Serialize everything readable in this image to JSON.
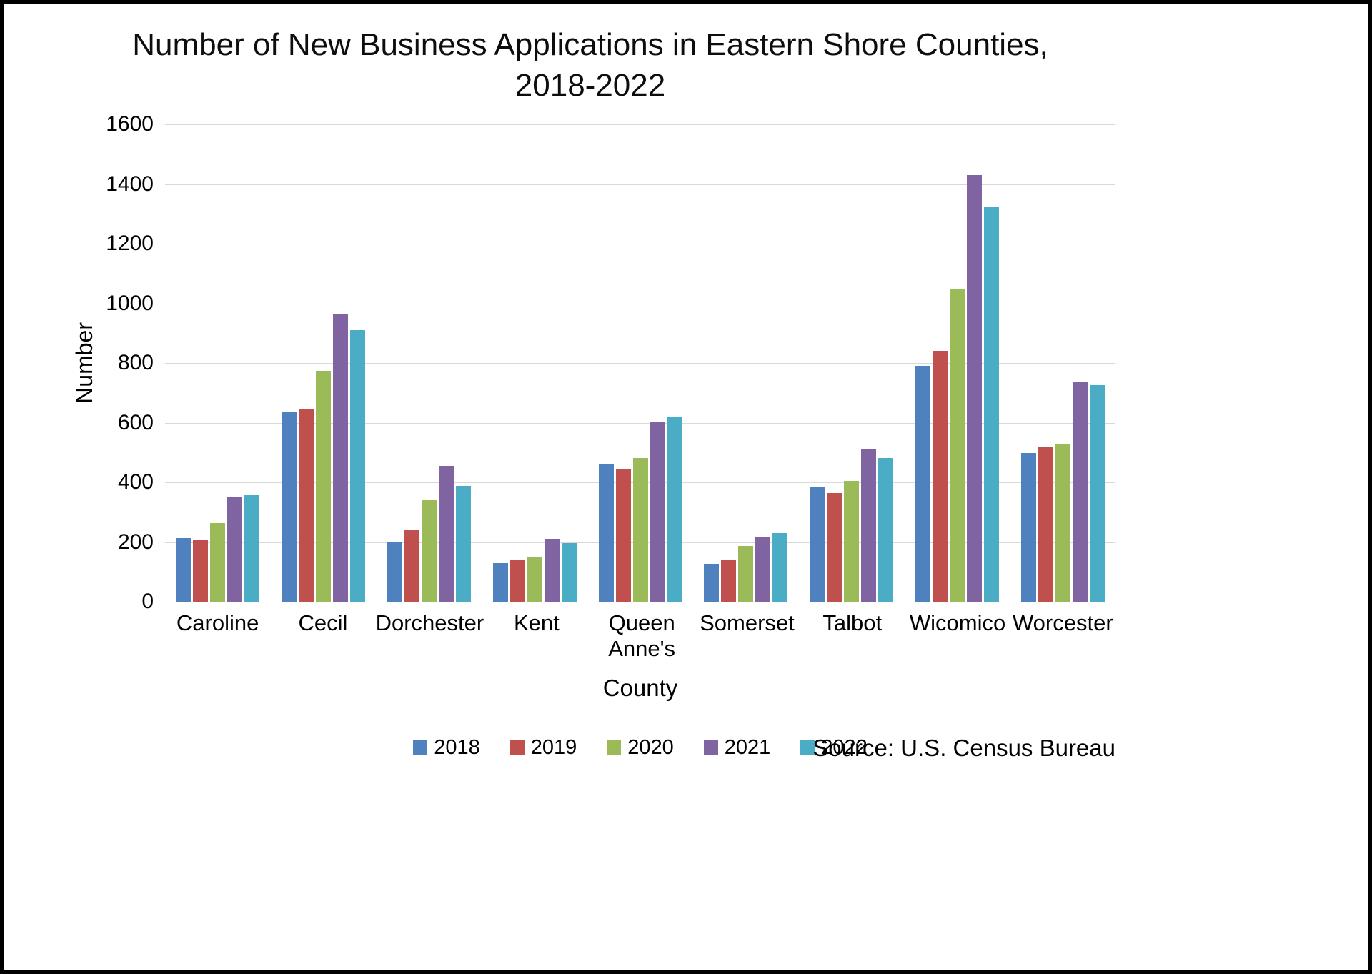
{
  "chart_data": {
    "type": "bar",
    "title_line1": "Number of New Business Applications in Eastern Shore Counties,",
    "title_line2": "2018-2022",
    "xlabel": "County",
    "ylabel": "Number",
    "ylim": [
      0,
      1600
    ],
    "yticks": [
      0,
      200,
      400,
      600,
      800,
      1000,
      1200,
      1400,
      1600
    ],
    "grid": true,
    "legend_position": "bottom",
    "source": "Source: U.S. Census Bureau",
    "categories": [
      "Caroline",
      "Cecil",
      "Dorchester",
      "Kent",
      "Queen Anne's",
      "Somerset",
      "Talbot",
      "Wicomico",
      "Worcester"
    ],
    "series": [
      {
        "name": "2018",
        "color": "#4e81bd",
        "values": [
          215,
          635,
          202,
          130,
          462,
          128,
          383,
          791,
          500
        ]
      },
      {
        "name": "2019",
        "color": "#c0504d",
        "values": [
          210,
          645,
          240,
          143,
          447,
          140,
          366,
          841,
          518
        ]
      },
      {
        "name": "2020",
        "color": "#9bbb59",
        "values": [
          265,
          775,
          340,
          150,
          482,
          188,
          405,
          1048,
          530
        ]
      },
      {
        "name": "2021",
        "color": "#8064a2",
        "values": [
          352,
          965,
          455,
          212,
          605,
          219,
          511,
          1430,
          736
        ]
      },
      {
        "name": "2022",
        "color": "#4bacc6",
        "values": [
          358,
          912,
          390,
          197,
          618,
          230,
          482,
          1324,
          726
        ]
      }
    ]
  }
}
